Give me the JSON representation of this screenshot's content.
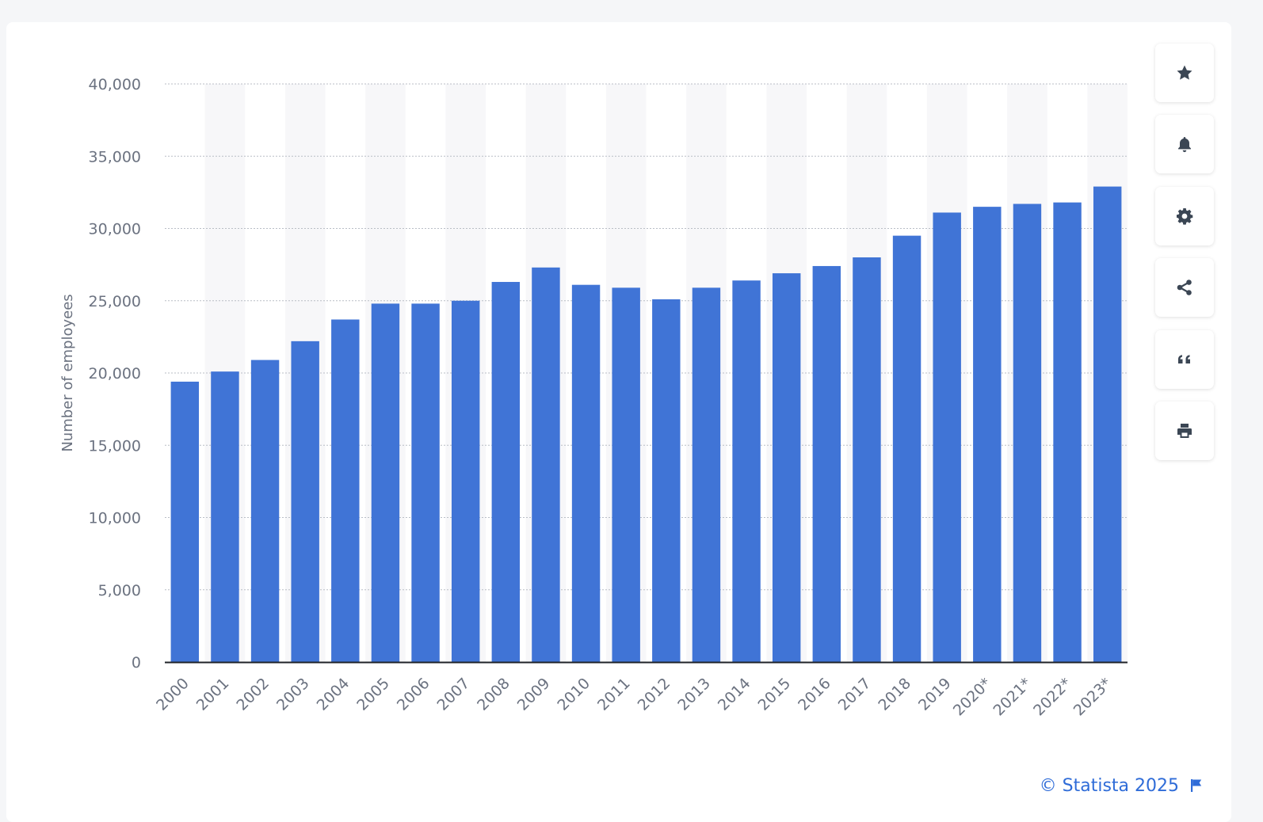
{
  "chart_data": {
    "type": "bar",
    "title": "",
    "xlabel": "",
    "ylabel": "Number of employees",
    "ylim": [
      0,
      40000
    ],
    "yticks": [
      0,
      5000,
      10000,
      15000,
      20000,
      25000,
      30000,
      35000,
      40000
    ],
    "ytick_labels": [
      "0",
      "5,000",
      "10,000",
      "15,000",
      "20,000",
      "25,000",
      "30,000",
      "35,000",
      "40,000"
    ],
    "categories": [
      "2000",
      "2001",
      "2002",
      "2003",
      "2004",
      "2005",
      "2006",
      "2007",
      "2008",
      "2009",
      "2010",
      "2011",
      "2012",
      "2013",
      "2014",
      "2015",
      "2016",
      "2017",
      "2018",
      "2019",
      "2020*",
      "2021*",
      "2022*",
      "2023*"
    ],
    "values": [
      19400,
      20100,
      20900,
      22200,
      23700,
      24800,
      24800,
      25000,
      26300,
      27300,
      26100,
      25900,
      25100,
      25900,
      26400,
      26900,
      27400,
      28000,
      29500,
      31100,
      31500,
      31700,
      31800,
      32900
    ],
    "grid": true,
    "legend": "none",
    "bar_color": "#4074d6"
  },
  "toolbar": [
    {
      "icon": "star-icon",
      "name": "favorite-button"
    },
    {
      "icon": "bell-icon",
      "name": "notification-button"
    },
    {
      "icon": "gear-icon",
      "name": "settings-button"
    },
    {
      "icon": "share-icon",
      "name": "share-button"
    },
    {
      "icon": "quote-icon",
      "name": "citation-button"
    },
    {
      "icon": "print-icon",
      "name": "print-button"
    }
  ],
  "credits": {
    "text": "© Statista 2025",
    "icon": "flag-icon",
    "color": "#2f6cd8"
  }
}
